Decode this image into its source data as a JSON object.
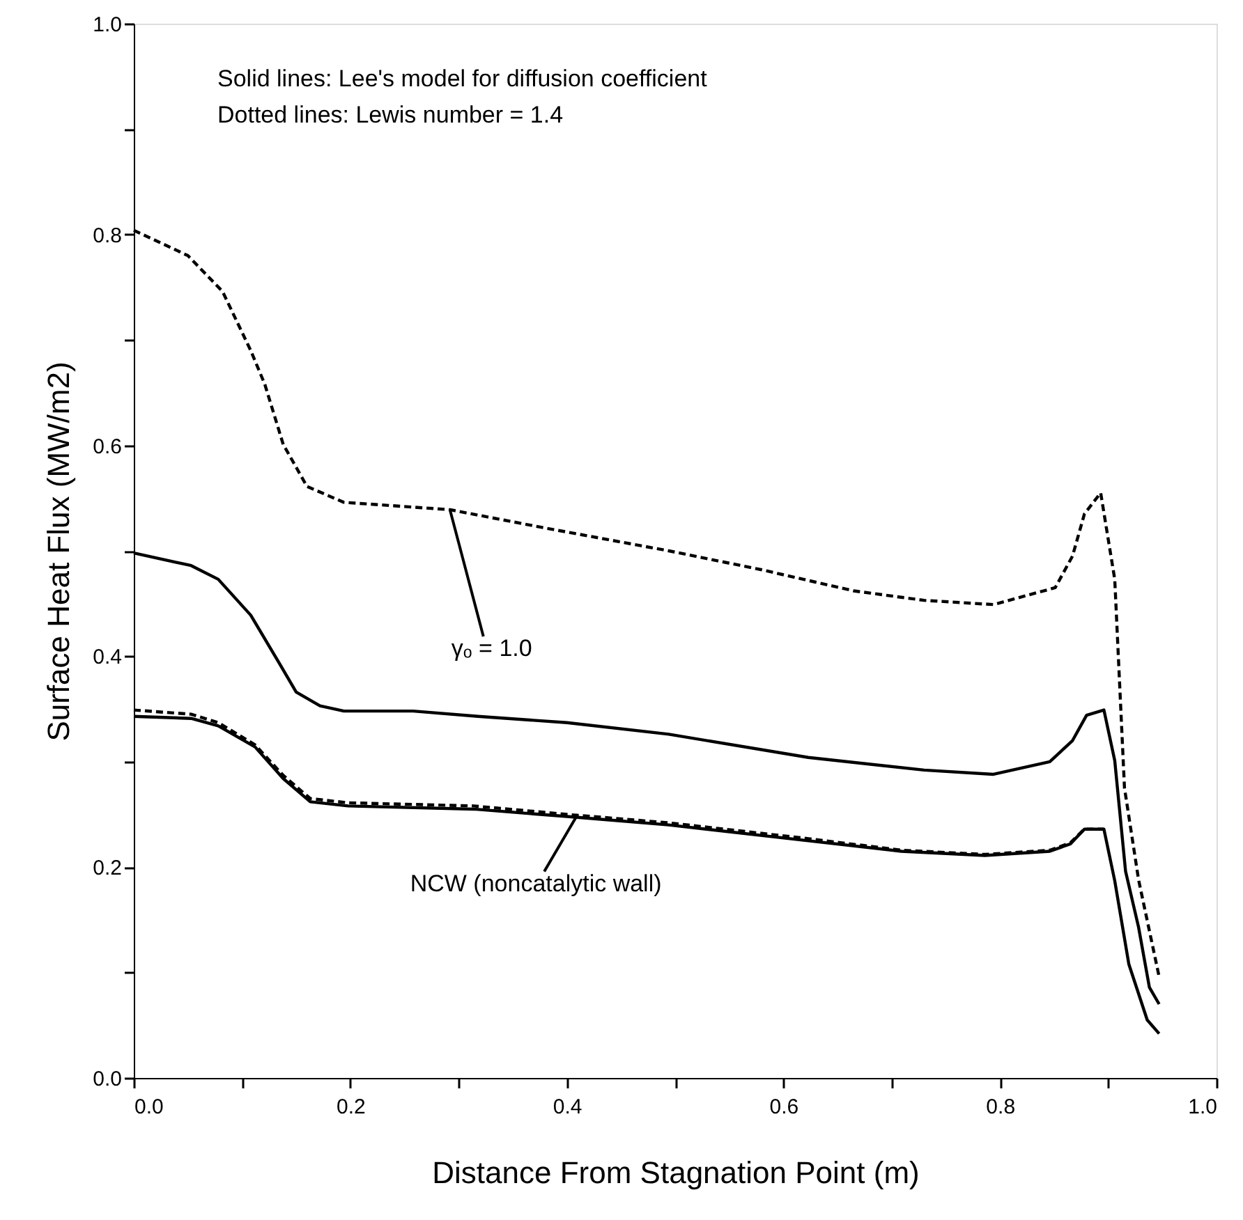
{
  "chart_data": {
    "type": "line",
    "xlabel": "Distance From Stagnation Point (m)",
    "ylabel": "Surface Heat Flux (MW/m2)",
    "xlim": [
      0,
      1
    ],
    "ylim": [
      0,
      1
    ],
    "xticks": [
      {
        "value": 0,
        "label": "0.0"
      },
      {
        "value": 0.1,
        "label": null
      },
      {
        "value": 0.2,
        "label": "0.2"
      },
      {
        "value": 0.3,
        "label": null
      },
      {
        "value": 0.4,
        "label": "0.4"
      },
      {
        "value": 0.5,
        "label": null
      },
      {
        "value": 0.6,
        "label": "0.6"
      },
      {
        "value": 0.7,
        "label": null
      },
      {
        "value": 0.8,
        "label": "0.8"
      },
      {
        "value": 0.9,
        "label": null
      },
      {
        "value": 1,
        "label": "1.0"
      }
    ],
    "yticks": [
      {
        "value": 0,
        "label": "0.0"
      },
      {
        "value": 0.1,
        "label": null
      },
      {
        "value": 0.2,
        "label": "0.2"
      },
      {
        "value": 0.3,
        "label": null
      },
      {
        "value": 0.4,
        "label": "0.4"
      },
      {
        "value": 0.5,
        "label": null
      },
      {
        "value": 0.6,
        "label": "0.6"
      },
      {
        "value": 0.7,
        "label": null
      },
      {
        "value": 0.8,
        "label": "0.8"
      },
      {
        "value": 0.9,
        "label": null
      },
      {
        "value": 1,
        "label": "1.0"
      }
    ],
    "grid": false,
    "series": [
      {
        "color": "#000000",
        "line_style": "dashed",
        "x": [
          0,
          0.05,
          0.082,
          0.108,
          0.121,
          0.138,
          0.16,
          0.194,
          0.292,
          0.378,
          0.494,
          0.58,
          0.665,
          0.73,
          0.794,
          0.851,
          0.867,
          0.878,
          0.893,
          0.906,
          0.915,
          0.928,
          0.947
        ],
        "values": [
          0.804,
          0.78,
          0.746,
          0.69,
          0.658,
          0.601,
          0.561,
          0.546,
          0.539,
          0.522,
          0.5,
          0.482,
          0.462,
          0.453,
          0.449,
          0.465,
          0.495,
          0.535,
          0.555,
          0.473,
          0.275,
          0.188,
          0.096
        ]
      },
      {
        "color": "#000000",
        "line_style": "solid",
        "x": [
          0,
          0.053,
          0.078,
          0.108,
          0.134,
          0.15,
          0.172,
          0.194,
          0.258,
          0.318,
          0.4,
          0.494,
          0.623,
          0.73,
          0.794,
          0.846,
          0.867,
          0.88,
          0.896,
          0.906,
          0.916,
          0.928,
          0.938,
          0.947
        ],
        "values": [
          0.498,
          0.486,
          0.473,
          0.439,
          0.394,
          0.366,
          0.353,
          0.348,
          0.348,
          0.343,
          0.337,
          0.326,
          0.304,
          0.292,
          0.288,
          0.3,
          0.32,
          0.344,
          0.349,
          0.301,
          0.196,
          0.143,
          0.086,
          0.07
        ]
      },
      {
        "color": "#000000",
        "line_style": "solid",
        "x": [
          0,
          0.053,
          0.078,
          0.112,
          0.138,
          0.163,
          0.198,
          0.314,
          0.4,
          0.494,
          0.623,
          0.709,
          0.786,
          0.846,
          0.865,
          0.878,
          0.896,
          0.906,
          0.919,
          0.936,
          0.947
        ],
        "values": [
          0.343,
          0.341,
          0.334,
          0.314,
          0.284,
          0.262,
          0.258,
          0.255,
          0.248,
          0.24,
          0.225,
          0.215,
          0.211,
          0.215,
          0.222,
          0.236,
          0.236,
          0.187,
          0.108,
          0.055,
          0.042
        ]
      },
      {
        "color": "#000000",
        "line_style": "dashed",
        "x": [
          0,
          0.053,
          0.078,
          0.112,
          0.138,
          0.163,
          0.198,
          0.314,
          0.4,
          0.494,
          0.623,
          0.709,
          0.786,
          0.846,
          0.865,
          0.878,
          0.896
        ],
        "values": [
          0.349,
          0.345,
          0.337,
          0.316,
          0.287,
          0.265,
          0.261,
          0.258,
          0.25,
          0.242,
          0.227,
          0.216,
          0.212,
          0.216,
          0.223,
          0.236,
          0.236
        ]
      }
    ],
    "annotations": [
      "Solid lines: Lee's model for diffusion coefficient",
      "Dotted lines: Lewis number = 1.4",
      {
        "text": "γₒ = 1.0",
        "x": 0.292,
        "y": 0.539
      },
      {
        "text": "NCW (noncatalytic wall)",
        "x": 0.41,
        "y": 0.25
      }
    ]
  }
}
